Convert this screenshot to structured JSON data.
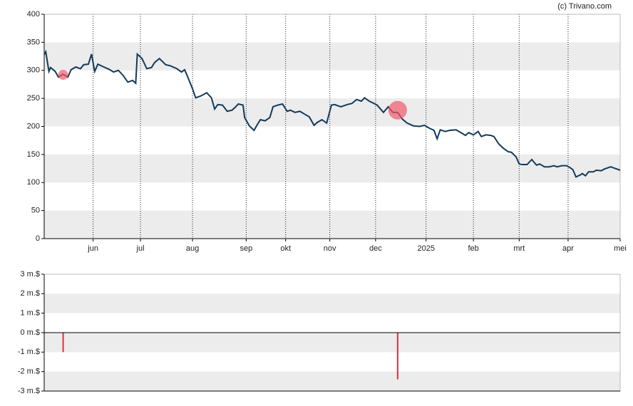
{
  "chart_data": [
    {
      "type": "line",
      "source": "(c) Trivano.com",
      "xlim": [
        0,
        365
      ],
      "xticks": [
        {
          "value": 31,
          "label": "jun"
        },
        {
          "value": 61,
          "label": "jul"
        },
        {
          "value": 94,
          "label": "aug"
        },
        {
          "value": 128,
          "label": "sep"
        },
        {
          "value": 153,
          "label": "okt"
        },
        {
          "value": 181,
          "label": "nov"
        },
        {
          "value": 210,
          "label": "dec"
        },
        {
          "value": 242,
          "label": "2025"
        },
        {
          "value": 272,
          "label": "feb"
        },
        {
          "value": 301,
          "label": "mrt"
        },
        {
          "value": 332,
          "label": "apr"
        },
        {
          "value": 365,
          "label": "mei"
        }
      ],
      "ylim": [
        0,
        400
      ],
      "yticks": [
        0,
        50,
        100,
        150,
        200,
        250,
        300,
        350,
        400
      ],
      "grid": true,
      "x": [
        0,
        1,
        3,
        4,
        7,
        9,
        12,
        15,
        17,
        20,
        23,
        25,
        28,
        30,
        32,
        34,
        37,
        41,
        44,
        47,
        50,
        53,
        56,
        58,
        59,
        62,
        65,
        68,
        70,
        73,
        77,
        80,
        84,
        87,
        89,
        91,
        94,
        96,
        99,
        103,
        106,
        108,
        110,
        113,
        116,
        119,
        121,
        123,
        126,
        127,
        130,
        133,
        135,
        137,
        140,
        143,
        145,
        148,
        151,
        154,
        156,
        159,
        162,
        165,
        168,
        171,
        173,
        176,
        179,
        182,
        184,
        188,
        192,
        195,
        198,
        201,
        203,
        206,
        209,
        211,
        215,
        218,
        221,
        224,
        227,
        230,
        234,
        238,
        241,
        244,
        247,
        249,
        251,
        254,
        257,
        261,
        264,
        267,
        269,
        272,
        275,
        277,
        280,
        283,
        285,
        288,
        291,
        294,
        296,
        299,
        301,
        303,
        306,
        309,
        312,
        314,
        317,
        320,
        323,
        325,
        328,
        331,
        333,
        335,
        337,
        340,
        341,
        343,
        345,
        348,
        350,
        353,
        355,
        359,
        361,
        365
      ],
      "series": [
        {
          "color": "#123a5c",
          "values": [
            328,
            333,
            298,
            305,
            298,
            288,
            293,
            288,
            301,
            306,
            303,
            310,
            311,
            329,
            298,
            311,
            307,
            302,
            297,
            300,
            291,
            279,
            282,
            277,
            329,
            321,
            303,
            305,
            314,
            321,
            310,
            308,
            303,
            297,
            301,
            288,
            267,
            251,
            254,
            260,
            251,
            231,
            239,
            238,
            227,
            229,
            234,
            240,
            238,
            216,
            201,
            193,
            203,
            212,
            210,
            216,
            235,
            238,
            240,
            227,
            229,
            225,
            227,
            222,
            217,
            202,
            207,
            212,
            206,
            238,
            239,
            235,
            239,
            241,
            248,
            245,
            251,
            245,
            241,
            238,
            225,
            235,
            225,
            225,
            213,
            206,
            201,
            200,
            202,
            197,
            193,
            178,
            194,
            191,
            193,
            194,
            189,
            184,
            189,
            185,
            191,
            182,
            185,
            184,
            182,
            169,
            161,
            155,
            154,
            146,
            133,
            132,
            132,
            141,
            131,
            133,
            128,
            128,
            130,
            128,
            130,
            130,
            127,
            123,
            110,
            114,
            116,
            112,
            119,
            119,
            122,
            121,
            124,
            128,
            126,
            122
          ]
        }
      ],
      "markers": {
        "color": "#f05a6a",
        "x": [
          12,
          224
        ],
        "y": [
          292,
          229
        ]
      }
    },
    {
      "type": "bar",
      "xlim": [
        0,
        365
      ],
      "ylim": [
        -3,
        3
      ],
      "yticks": [
        {
          "value": -3,
          "label": "-3 m.$"
        },
        {
          "value": -2,
          "label": "-2 m.$"
        },
        {
          "value": -1,
          "label": "-1 m.$"
        },
        {
          "value": 0,
          "label": "0 m.$"
        },
        {
          "value": 1,
          "label": "1 m.$"
        },
        {
          "value": 2,
          "label": "2 m.$"
        },
        {
          "value": 3,
          "label": "3 m.$"
        }
      ],
      "grid": true,
      "x": [
        12,
        224
      ],
      "values": [
        -1.0,
        -2.4
      ],
      "color": "#e0303a"
    }
  ]
}
